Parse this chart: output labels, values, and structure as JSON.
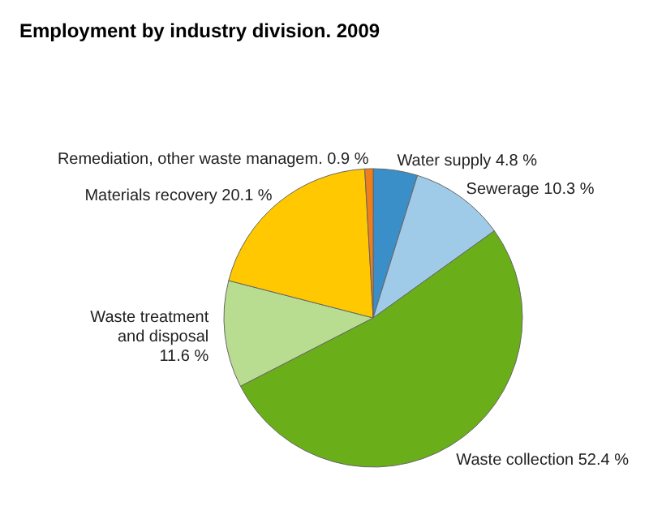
{
  "chart_data": {
    "type": "pie",
    "title": "Employment by industry division. 2009",
    "categories": [
      "Water supply",
      "Sewerage",
      "Waste collection",
      "Waste treatment and disposal",
      "Materials recovery",
      "Remediation, other waste managem."
    ],
    "values": [
      4.8,
      10.3,
      52.4,
      11.6,
      20.1,
      0.9
    ],
    "colors": [
      "#3a8fc8",
      "#a0cbe8",
      "#6aaf1a",
      "#b8dc90",
      "#ffc800",
      "#f07f1a"
    ],
    "value_labels": [
      "4.8 %",
      "10.3 %",
      "52.4 %",
      "11.6 %",
      "20.1 %",
      "0.9 %"
    ]
  }
}
